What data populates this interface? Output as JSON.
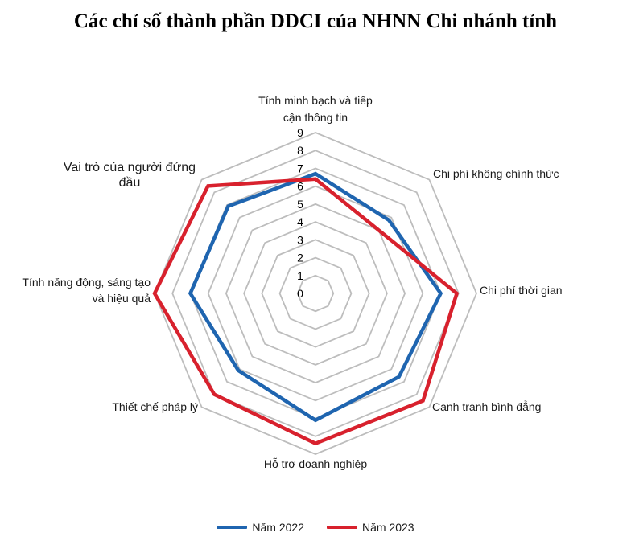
{
  "chart_data": {
    "type": "radar",
    "title": "Các chỉ số thành phần DDCI của NHNN Chi nhánh tỉnh",
    "axes": [
      "Tính minh bạch và tiếp cận thông tin",
      "Chi phí không chính thức",
      "Chi phí thời gian",
      "Cạnh tranh bình đẳng",
      "Hỗ trợ doanh nghiệp",
      "Thiết chế pháp lý",
      "Tính năng động, sáng tạo và hiệu quả",
      "Vai trò của người đứng đầu"
    ],
    "axis_label_lines": [
      [
        "Tính minh bạch và tiếp",
        "cận thông tin"
      ],
      [
        "Chi phí không chính thức"
      ],
      [
        "Chi phí thời gian"
      ],
      [
        "Cạnh tranh bình đẳng"
      ],
      [
        "Hỗ trợ doanh nghiệp"
      ],
      [
        "Thiết chế pháp lý"
      ],
      [
        "Tính năng động, sáng tạo",
        "và hiệu quả"
      ],
      [
        "Vai trò của người đứng",
        "đầu"
      ]
    ],
    "range": [
      0,
      9
    ],
    "ticks": [
      "0",
      "1",
      "2",
      "3",
      "4",
      "5",
      "6",
      "7",
      "8",
      "9"
    ],
    "grid": true,
    "legend_position": "bottom",
    "series": [
      {
        "name": "Năm 2022",
        "color": "#1f65b0",
        "values": [
          6.7,
          5.8,
          7.0,
          6.6,
          7.1,
          6.1,
          7.0,
          6.9
        ]
      },
      {
        "name": "Năm 2023",
        "color": "#d8212d",
        "values": [
          6.4,
          5.0,
          7.9,
          8.5,
          8.4,
          8.0,
          9.0,
          8.5
        ]
      }
    ]
  }
}
